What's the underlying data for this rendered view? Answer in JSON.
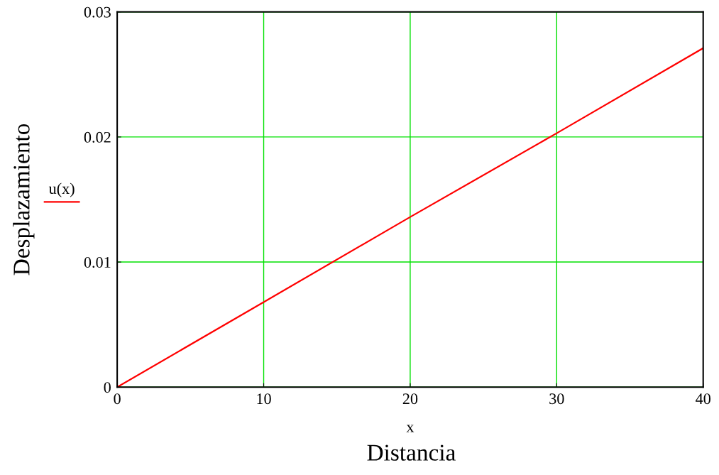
{
  "chart_data": {
    "type": "line",
    "xlabel": "x",
    "ylabel": "Desplazamiento",
    "annotations": [
      "Distancia"
    ],
    "x": [
      0,
      10,
      20,
      30,
      40
    ],
    "series": [
      {
        "name": "u(x)",
        "color": "#ff0000",
        "values": [
          0,
          0.0068,
          0.0136,
          0.0203,
          0.0271
        ]
      }
    ],
    "xlim": [
      0,
      40
    ],
    "xticks": [
      0,
      10,
      20,
      30,
      40
    ],
    "ylim": [
      0,
      0.03
    ],
    "yticks": [
      0,
      0.01,
      0.02,
      0.03
    ],
    "grid": true,
    "legend": "left",
    "marker": "none",
    "line_style": "solid"
  }
}
